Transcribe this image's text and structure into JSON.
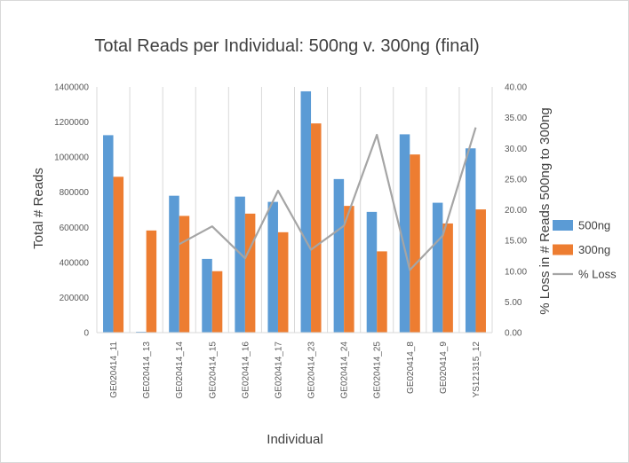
{
  "chart_data": {
    "type": "bar",
    "title": "Total Reads per Individual: 500ng v. 300ng (final)",
    "xlabel": "Individual",
    "ylabel": "Total # Reads",
    "y2label": "% Loss in # Reads 500ng to 300ng",
    "ylim": [
      0,
      1400000
    ],
    "y2lim": [
      0,
      40
    ],
    "yticks": [
      "0",
      "200000",
      "400000",
      "600000",
      "800000",
      "1000000",
      "1200000",
      "1400000"
    ],
    "y2ticks": [
      "0.00",
      "5.00",
      "10.00",
      "15.00",
      "20.00",
      "25.00",
      "30.00",
      "35.00",
      "40.00"
    ],
    "categories": [
      "GE020414_11",
      "GE020414_13",
      "GE020414_14",
      "GE020414_15",
      "GE020414_16",
      "GE020414_17",
      "GE020414_23",
      "GE020414_24",
      "GE020414_25",
      "GE020414_8",
      "GE020414_9",
      "YS121315_12"
    ],
    "series": [
      {
        "name": "500ng",
        "type": "bar",
        "axis": "left",
        "color": "#5b9bd5",
        "values": [
          1125000,
          5000,
          780000,
          420000,
          775000,
          745000,
          1375000,
          875000,
          688000,
          1130000,
          740000,
          1050000
        ]
      },
      {
        "name": "300ng",
        "type": "bar",
        "axis": "left",
        "color": "#ed7d31",
        "values": [
          888000,
          582000,
          665000,
          350000,
          678000,
          572000,
          1192000,
          722000,
          463000,
          1015000,
          622000,
          702000
        ]
      },
      {
        "name": "% Loss",
        "type": "line",
        "axis": "right",
        "color": "#a5a5a5",
        "values": [
          null,
          null,
          14.4,
          17.3,
          12.1,
          23.1,
          13.5,
          17.4,
          32.2,
          10.2,
          15.8,
          33.4
        ]
      }
    ],
    "legend_position": "right",
    "grid": "vertical category gridlines"
  }
}
